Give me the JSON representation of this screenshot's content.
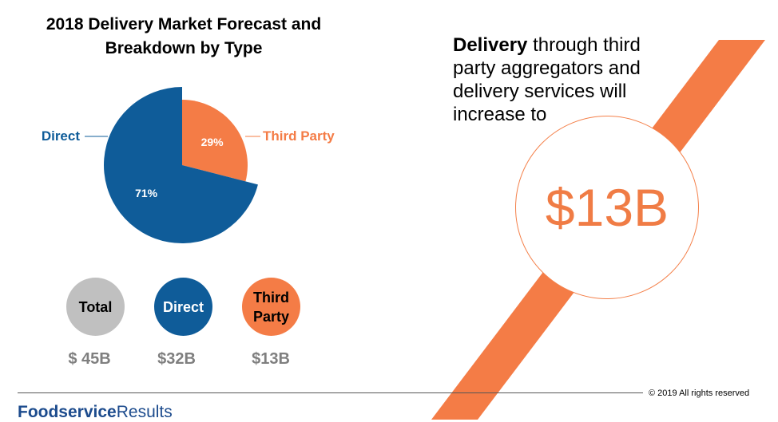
{
  "colors": {
    "direct": "#0f5c99",
    "third_party": "#f47c46",
    "total": "#c0c0c0",
    "stripe": "#f47c46",
    "value_text": "#7f7f7f"
  },
  "chart_data": {
    "type": "pie",
    "title": "2018 Delivery Market Forecast and Breakdown by Type",
    "slices": [
      {
        "label": "Third Party",
        "value": 29,
        "display": "29%"
      },
      {
        "label": "Direct",
        "value": 71,
        "display": "71%"
      }
    ],
    "legend": "callout labels"
  },
  "summary": [
    {
      "label": "Total",
      "value": "$ 45B"
    },
    {
      "label": "Direct",
      "value": "$32B"
    },
    {
      "label": "Third Party",
      "value": "$13B"
    }
  ],
  "callout": {
    "bold": "Delivery",
    "rest": " through third party aggregators and delivery services will increase to",
    "value": "$13B"
  },
  "footer": {
    "copyright": "© 2019 All rights reserved",
    "brand_bold": "Foodservice",
    "brand_rest": "Results"
  }
}
